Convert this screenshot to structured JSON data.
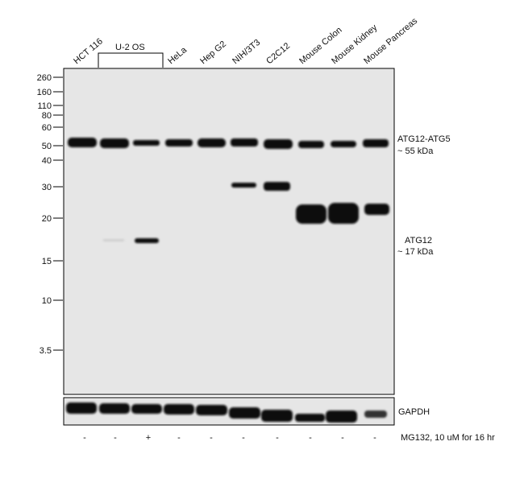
{
  "lane_labels": [
    "HCT 116",
    "HeLa",
    "Hep G2",
    "NIH/3T3",
    "C2C12",
    "Mouse Colon",
    "Mouse Kidney",
    "Mouse Pancreas"
  ],
  "group_label": "U-2 OS",
  "markers": [
    "260",
    "160",
    "110",
    "80",
    "60",
    "50",
    "40",
    "30",
    "20",
    "15",
    "10",
    "3.5"
  ],
  "band_annotations": [
    {
      "name": "ATG12-ATG5",
      "size": "~ 55 kDa"
    },
    {
      "name": "ATG12",
      "size": "~ 17 kDa"
    }
  ],
  "loading_control": "GAPDH",
  "treatment": {
    "signs": [
      "-",
      "-",
      "+",
      "-",
      "-",
      "-",
      "-",
      "-",
      "-",
      "-"
    ],
    "label": "MG132, 10 uM  for 16 hr"
  }
}
